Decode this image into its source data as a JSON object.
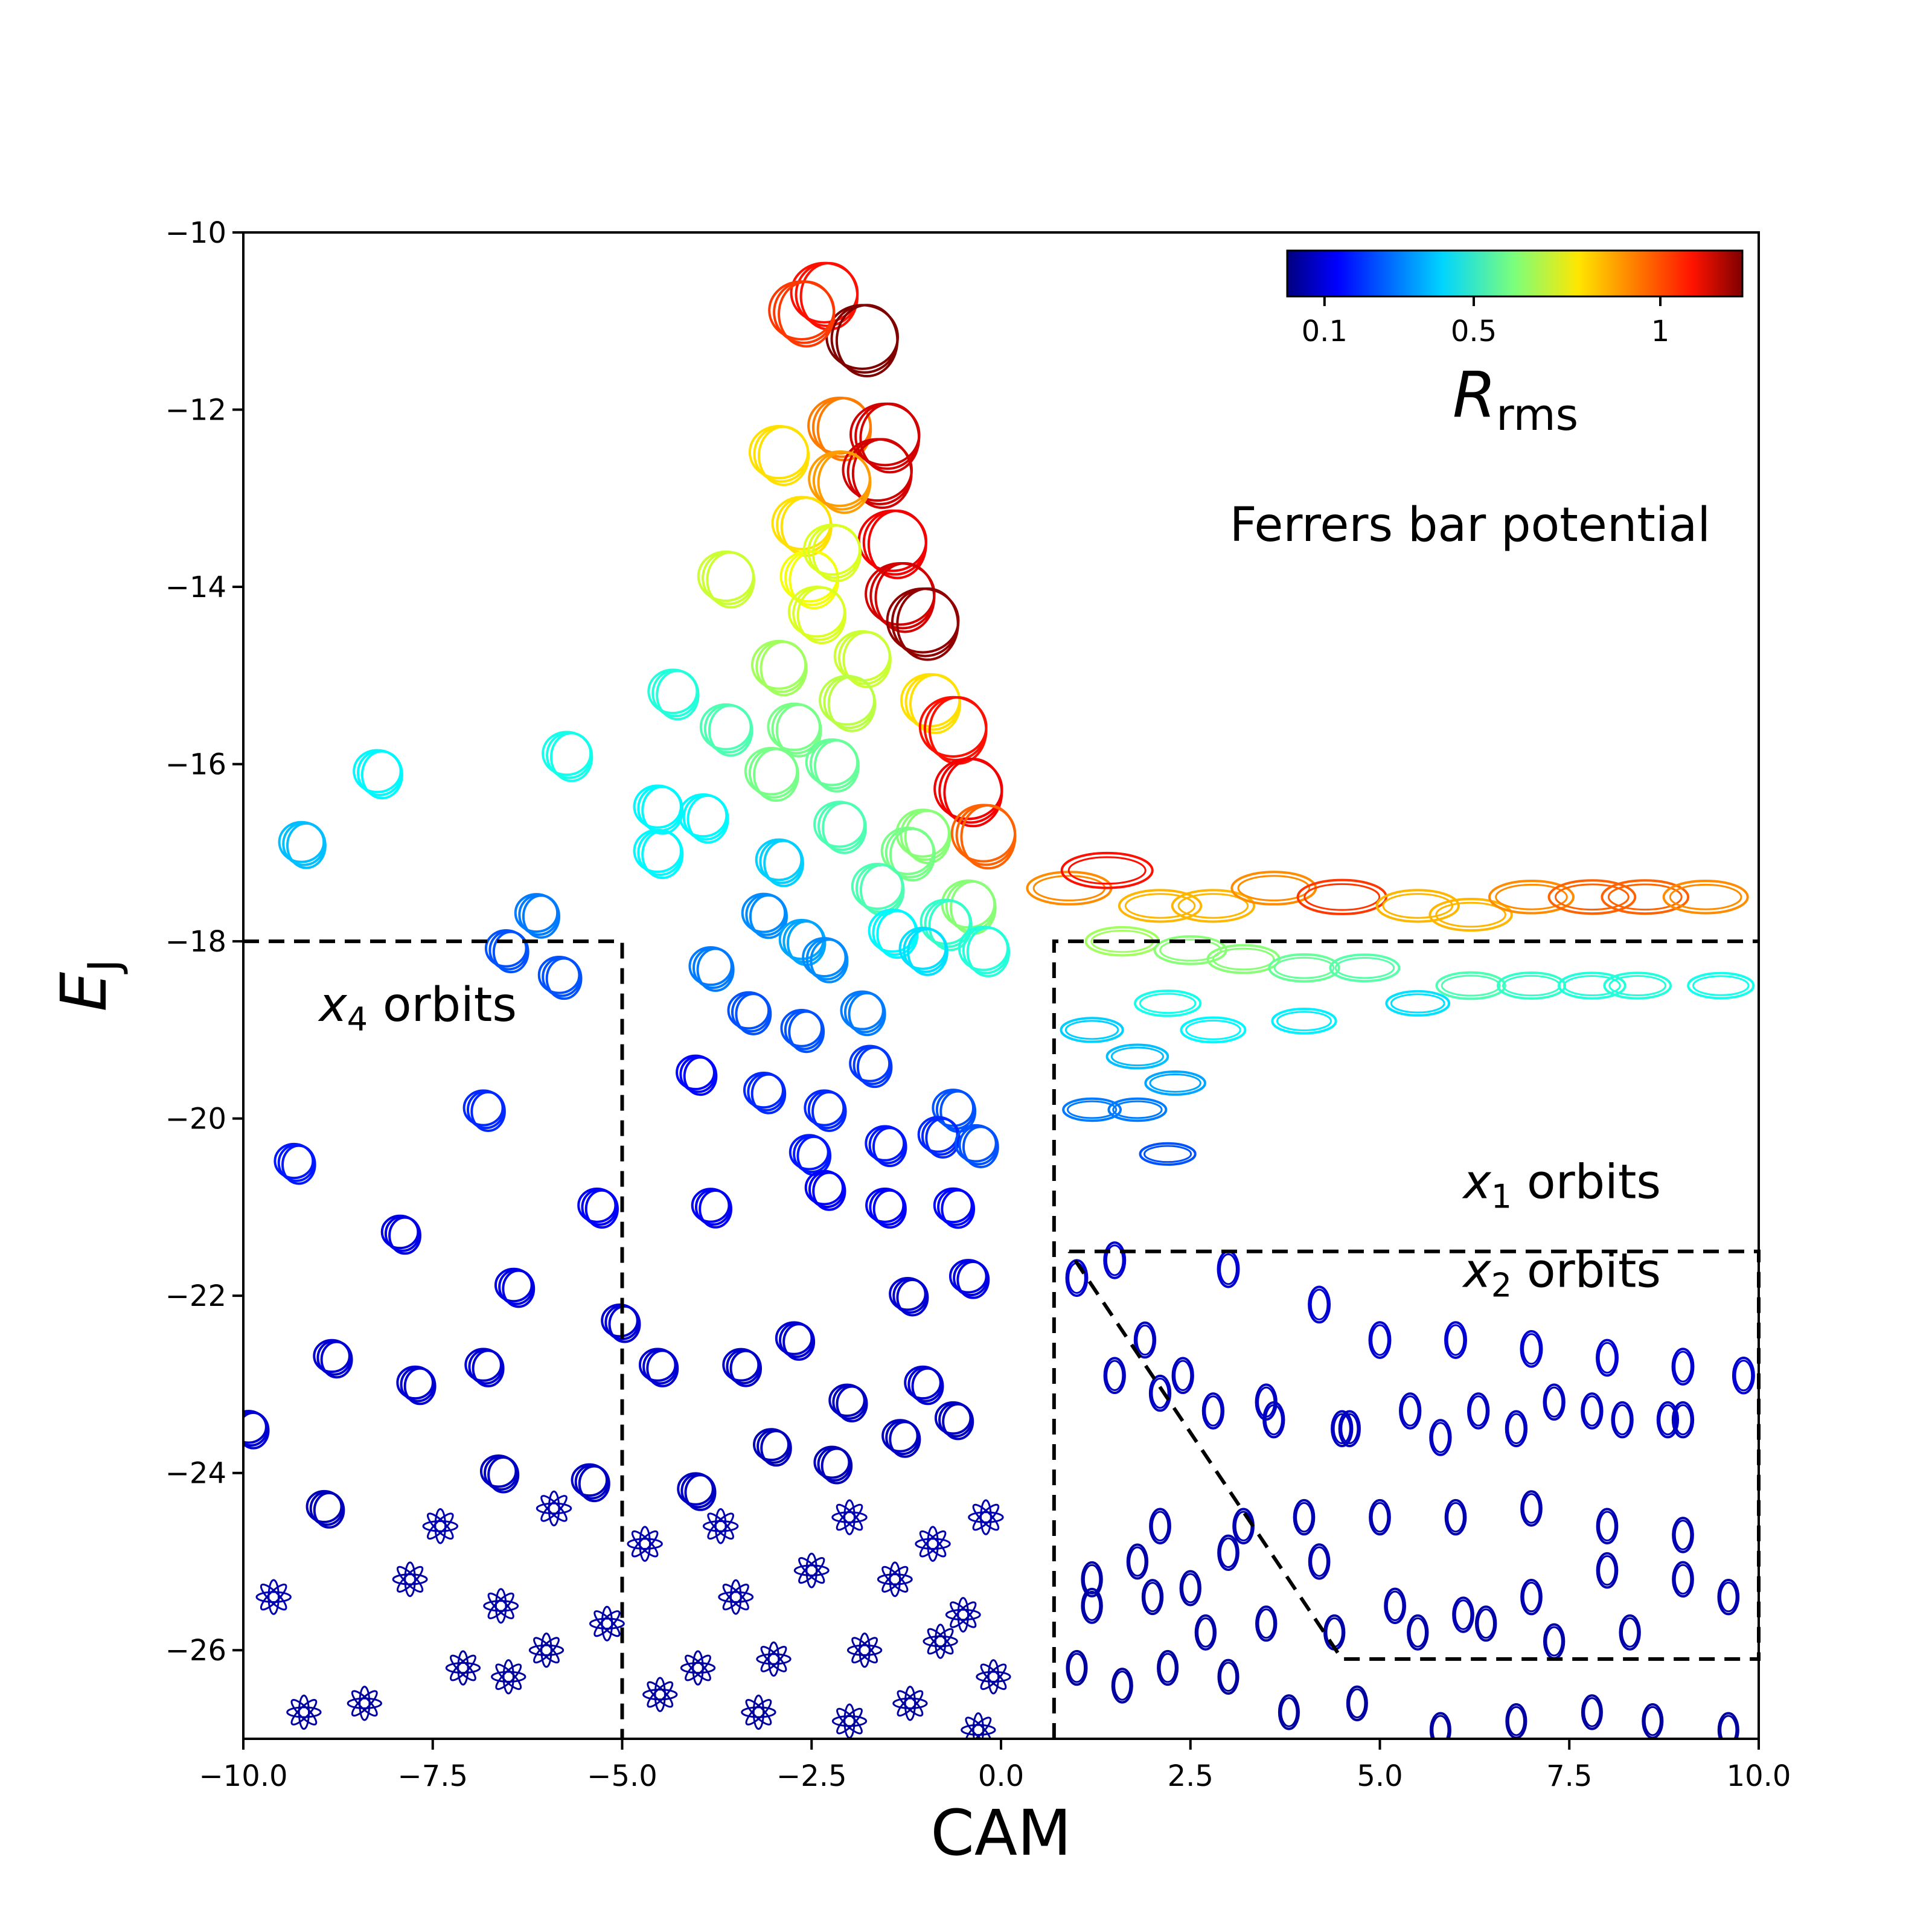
{
  "chart_data": {
    "type": "scatter",
    "title": "",
    "xlabel": "CAM",
    "ylabel": "E",
    "ylabel_sub": "J",
    "xlim": [
      -10,
      10
    ],
    "ylim": [
      -27,
      -10
    ],
    "xticks": [
      -10,
      -7.5,
      -5,
      -2.5,
      0,
      2.5,
      5,
      7.5,
      10
    ],
    "xtick_labels": [
      "−10.0",
      "−7.5",
      "−5.0",
      "−2.5",
      "0.0",
      "2.5",
      "5.0",
      "7.5",
      "10.0"
    ],
    "yticks": [
      -10,
      -12,
      -14,
      -16,
      -18,
      -20,
      -22,
      -24,
      -26
    ],
    "ytick_labels": [
      "−10",
      "−12",
      "−14",
      "−16",
      "−18",
      "−20",
      "−22",
      "−24",
      "−26"
    ],
    "annotation": "Ferrers bar potential",
    "region_labels": [
      {
        "var": "x",
        "sub": "4",
        "text": " orbits",
        "x": -9.0,
        "y": -18.9
      },
      {
        "var": "x",
        "sub": "1",
        "text": " orbits",
        "x": 6.1,
        "y": -20.9
      },
      {
        "var": "x",
        "sub": "2",
        "text": " orbits",
        "x": 6.1,
        "y": -21.9
      }
    ],
    "colorbar": {
      "label": "R",
      "label_sub": "rms",
      "tick_labels": [
        "0.1",
        "0.5",
        "1"
      ],
      "tick_positions": [
        0.1,
        0.5,
        1.0
      ],
      "range": [
        0.0,
        1.22
      ],
      "colormap": "jet"
    },
    "region_boundaries": [
      {
        "name": "x4",
        "points": [
          [
            -10,
            -18
          ],
          [
            -5,
            -18
          ],
          [
            -5,
            -27
          ]
        ]
      },
      {
        "name": "x1",
        "points": [
          [
            0.7,
            -27
          ],
          [
            0.7,
            -18
          ],
          [
            10,
            -18
          ]
        ]
      },
      {
        "name": "x2",
        "points": [
          [
            0.9,
            -21.5
          ],
          [
            10,
            -21.5
          ],
          [
            10,
            -26.1
          ],
          [
            4.5,
            -26.1
          ],
          [
            0.9,
            -21.5
          ]
        ]
      }
    ],
    "series": [
      {
        "name": "orbits",
        "x": [
          -2.3,
          -1.8,
          -2.6,
          -2.1,
          -1.5,
          -1.6,
          -2.9,
          -2.6,
          -2.1,
          -1.4,
          -1.3,
          -2.5,
          -2.2,
          -3.6,
          -1.0,
          -2.9,
          -2.4,
          -4.3,
          -1.8,
          -3.6,
          -2.0,
          -0.9,
          -0.6,
          -2.7,
          -0.4,
          -5.7,
          -8.2,
          -2.2,
          -3.0,
          -3.9,
          -9.2,
          -1.0,
          -4.5,
          -2.1,
          -0.2,
          -2.9,
          -1.2,
          -4.5,
          -1.6,
          -0.4,
          -6.1,
          -3.1,
          -2.6,
          -1.4,
          -0.7,
          -6.5,
          -5.8,
          -3.8,
          -2.3,
          -1.0,
          -0.2,
          -3.3,
          -2.6,
          -1.8,
          -6.8,
          -3.1,
          -1.7,
          -9.3,
          -2.3,
          -0.6,
          -4.0,
          -2.5,
          -1.5,
          -0.8,
          -0.3,
          -5.3,
          -3.8,
          -6.4,
          -7.9,
          -2.3,
          -1.5,
          -0.6,
          -8.8,
          -6.8,
          -5.0,
          -4.5,
          -3.4,
          -2.7,
          -1.2,
          -0.4,
          -7.7,
          -2.0,
          -1.0,
          -9.9,
          -6.6,
          -5.4,
          -4.0,
          -3.0,
          -2.2,
          -1.3,
          -0.6,
          -8.9,
          -7.4,
          -5.9,
          -4.7,
          -3.7,
          -2.0,
          -0.9,
          -0.2,
          -9.6,
          -7.8,
          -6.6,
          -5.2,
          -3.5,
          -2.5,
          -1.4,
          -0.5,
          -9.2,
          -8.4,
          -7.1,
          -6.0,
          -4.0,
          -3.0,
          -1.8,
          -0.8,
          -0.1,
          -6.5,
          -4.5,
          -3.2,
          -2.0,
          -1.2,
          -0.3,
          0.9,
          1.4,
          2.1,
          2.8,
          3.6,
          4.5,
          5.5,
          6.2,
          7.0,
          7.8,
          8.5,
          9.3,
          1.6,
          2.5,
          3.2,
          4.0,
          4.8,
          6.2,
          7.0,
          7.8,
          8.4,
          9.5,
          2.2,
          2.8,
          4.0,
          5.5,
          1.2,
          1.8,
          2.3,
          1.2,
          1.8,
          2.2,
          1.0,
          1.5,
          3.0,
          4.2,
          5.0,
          6.0,
          7.0,
          8.0,
          9.0,
          9.8,
          1.9,
          2.4,
          3.5,
          4.5,
          5.4,
          6.3,
          7.3,
          8.2,
          9.0,
          2.1,
          3.0,
          4.0,
          5.0,
          6.0,
          7.0,
          8.0,
          9.0,
          1.2,
          1.8,
          2.5,
          3.2,
          4.2,
          5.2,
          6.1,
          7.0,
          8.0,
          9.0,
          9.6,
          1.2,
          2.0,
          2.7,
          3.5,
          4.4,
          5.5,
          6.4,
          7.3,
          8.3,
          1.0,
          1.6,
          2.2,
          3.0,
          3.8,
          4.7,
          5.8,
          6.8,
          7.8,
          8.6,
          9.6,
          1.5,
          2.1,
          2.8,
          3.6,
          4.6,
          5.8,
          6.8,
          7.8,
          8.8
        ],
        "y": [
          -10.7,
          -11.2,
          -10.9,
          -12.2,
          -12.3,
          -12.7,
          -12.5,
          -13.3,
          -12.8,
          -13.5,
          -14.1,
          -13.9,
          -13.6,
          -13.9,
          -14.4,
          -14.9,
          -14.3,
          -15.2,
          -14.8,
          -15.6,
          -15.3,
          -15.3,
          -15.6,
          -15.6,
          -16.3,
          -15.9,
          -16.1,
          -16.0,
          -16.1,
          -16.6,
          -16.9,
          -16.8,
          -16.5,
          -16.7,
          -16.8,
          -17.1,
          -17.0,
          -17.0,
          -17.4,
          -17.6,
          -17.7,
          -17.7,
          -18.0,
          -17.9,
          -17.8,
          -18.1,
          -18.4,
          -18.3,
          -18.2,
          -18.1,
          -18.1,
          -18.8,
          -19.0,
          -18.8,
          -19.9,
          -19.7,
          -19.4,
          -20.5,
          -19.9,
          -19.9,
          -19.5,
          -20.4,
          -20.3,
          -20.2,
          -20.3,
          -21.0,
          -21.0,
          -21.9,
          -21.3,
          -20.8,
          -21.0,
          -21.0,
          -22.7,
          -22.8,
          -22.3,
          -22.8,
          -22.8,
          -22.5,
          -22.0,
          -21.8,
          -23.0,
          -23.2,
          -23.0,
          -23.5,
          -24.0,
          -24.1,
          -24.2,
          -23.7,
          -23.9,
          -23.6,
          -23.4,
          -24.4,
          -24.6,
          -24.4,
          -24.8,
          -24.6,
          -24.5,
          -24.8,
          -24.5,
          -25.4,
          -25.2,
          -25.5,
          -25.7,
          -25.4,
          -25.1,
          -25.2,
          -25.6,
          -26.7,
          -26.6,
          -26.2,
          -26.0,
          -26.2,
          -26.1,
          -26.0,
          -25.9,
          -26.3,
          -26.3,
          -26.5,
          -26.7,
          -26.8,
          -26.6,
          -26.9,
          -17.4,
          -17.2,
          -17.6,
          -17.6,
          -17.4,
          -17.5,
          -17.6,
          -17.7,
          -17.5,
          -17.5,
          -17.5,
          -17.5,
          -18.0,
          -18.1,
          -18.2,
          -18.3,
          -18.3,
          -18.5,
          -18.5,
          -18.5,
          -18.5,
          -18.5,
          -18.7,
          -19.0,
          -18.9,
          -18.7,
          -19.0,
          -19.3,
          -19.6,
          -19.9,
          -19.9,
          -20.4,
          -21.8,
          -21.6,
          -21.7,
          -22.1,
          -22.5,
          -22.5,
          -22.6,
          -22.7,
          -22.8,
          -22.9,
          -22.5,
          -22.9,
          -23.2,
          -23.5,
          -23.3,
          -23.3,
          -23.2,
          -23.4,
          -23.4,
          -24.6,
          -24.9,
          -24.5,
          -24.5,
          -24.5,
          -24.4,
          -24.6,
          -24.7,
          -25.2,
          -25.0,
          -25.3,
          -24.6,
          -25.0,
          -25.5,
          -25.6,
          -25.4,
          -25.1,
          -25.2,
          -25.4,
          -25.5,
          -25.4,
          -25.8,
          -25.7,
          -25.8,
          -25.8,
          -25.7,
          -25.9,
          -25.8,
          -26.2,
          -26.4,
          -26.2,
          -26.3,
          -26.7,
          -26.6,
          -26.9,
          -26.8,
          -26.7,
          -26.8,
          -26.9,
          -22.9,
          -23.1,
          -23.3,
          -23.4,
          -23.5,
          -23.6,
          -23.5,
          -23.3,
          -23.4
        ],
        "r_rms": [
          1.05,
          1.22,
          1.0,
          0.92,
          1.12,
          1.12,
          0.8,
          0.8,
          0.88,
          1.08,
          1.12,
          0.75,
          0.72,
          0.7,
          1.2,
          0.65,
          0.72,
          0.5,
          0.7,
          0.55,
          0.68,
          0.8,
          1.05,
          0.6,
          1.08,
          0.48,
          0.45,
          0.58,
          0.6,
          0.45,
          0.38,
          0.62,
          0.45,
          0.55,
          0.95,
          0.4,
          0.6,
          0.45,
          0.55,
          0.62,
          0.3,
          0.32,
          0.35,
          0.45,
          0.52,
          0.25,
          0.25,
          0.3,
          0.32,
          0.42,
          0.5,
          0.25,
          0.25,
          0.3,
          0.2,
          0.2,
          0.22,
          0.18,
          0.2,
          0.25,
          0.16,
          0.18,
          0.18,
          0.2,
          0.25,
          0.15,
          0.14,
          0.12,
          0.12,
          0.15,
          0.15,
          0.16,
          0.1,
          0.1,
          0.1,
          0.1,
          0.09,
          0.1,
          0.1,
          0.12,
          0.1,
          0.08,
          0.1,
          0.1,
          0.08,
          0.08,
          0.08,
          0.07,
          0.07,
          0.08,
          0.08,
          0.07,
          0.06,
          0.06,
          0.06,
          0.06,
          0.06,
          0.06,
          0.06,
          0.06,
          0.05,
          0.05,
          0.05,
          0.05,
          0.05,
          0.05,
          0.05,
          0.04,
          0.04,
          0.04,
          0.04,
          0.04,
          0.04,
          0.04,
          0.04,
          0.04,
          0.04,
          0.04,
          0.04,
          0.04,
          0.04,
          0.04,
          0.9,
          1.05,
          0.85,
          0.85,
          0.9,
          1.0,
          0.85,
          0.85,
          0.9,
          0.95,
          0.95,
          0.9,
          0.65,
          0.62,
          0.62,
          0.58,
          0.56,
          0.55,
          0.52,
          0.5,
          0.5,
          0.48,
          0.48,
          0.45,
          0.44,
          0.42,
          0.4,
          0.38,
          0.35,
          0.3,
          0.3,
          0.25,
          0.1,
          0.1,
          0.1,
          0.1,
          0.1,
          0.1,
          0.1,
          0.1,
          0.1,
          0.1,
          0.08,
          0.08,
          0.08,
          0.08,
          0.08,
          0.08,
          0.08,
          0.08,
          0.08,
          0.06,
          0.06,
          0.06,
          0.06,
          0.06,
          0.06,
          0.06,
          0.06,
          0.05,
          0.05,
          0.05,
          0.06,
          0.06,
          0.06,
          0.06,
          0.06,
          0.06,
          0.06,
          0.06,
          0.05,
          0.05,
          0.05,
          0.05,
          0.05,
          0.05,
          0.05,
          0.05,
          0.05,
          0.04,
          0.04,
          0.04,
          0.04,
          0.04,
          0.04,
          0.04,
          0.04,
          0.04,
          0.04,
          0.04,
          0.08,
          0.08,
          0.08,
          0.08,
          0.08,
          0.08,
          0.08,
          0.08,
          0.08
        ]
      }
    ]
  }
}
